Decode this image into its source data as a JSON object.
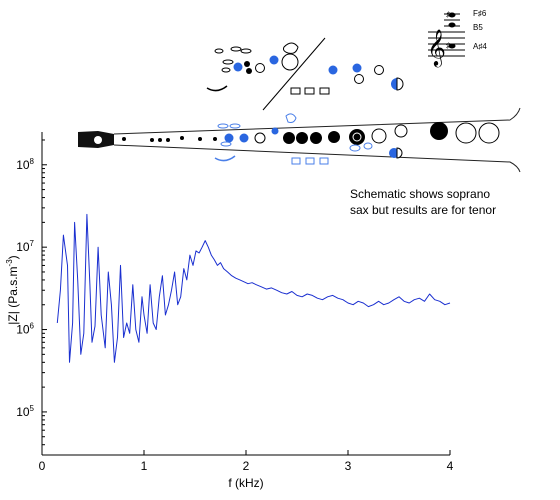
{
  "chart_data": {
    "type": "line",
    "xlabel": "f (kHz)",
    "ylabel": "|Z| (Pa.s.m",
    "ylabel_sup": "-3",
    "ylabel_close": ")",
    "x_ticks": [
      0,
      1,
      2,
      3,
      4
    ],
    "y_ticks": [
      {
        "value": 100000,
        "mantissa": "10",
        "exp": "5"
      },
      {
        "value": 1000000,
        "mantissa": "10",
        "exp": "6"
      },
      {
        "value": 10000000,
        "mantissa": "10",
        "exp": "7"
      },
      {
        "value": 100000000,
        "mantissa": "10",
        "exp": "8"
      }
    ],
    "xlim": [
      0,
      4
    ],
    "ylim": [
      30000,
      250000000
    ],
    "yscale": "log",
    "grid": false,
    "line_color": "#1a2fd0",
    "annotation": [
      "Schematic shows soprano",
      "sax but results are for tenor"
    ],
    "note_labels": [
      "F♯6",
      "B5",
      "A♯4"
    ],
    "series": [
      {
        "x": [
          0.15,
          0.18,
          0.21,
          0.25,
          0.27,
          0.3,
          0.32,
          0.35,
          0.38,
          0.41,
          0.44,
          0.47,
          0.49,
          0.52,
          0.55,
          0.58,
          0.62,
          0.65,
          0.68,
          0.71,
          0.74,
          0.77,
          0.8,
          0.83,
          0.86,
          0.89,
          0.92,
          0.95,
          0.98,
          1.0,
          1.03,
          1.06,
          1.09,
          1.12,
          1.15,
          1.18,
          1.21,
          1.24,
          1.27,
          1.3,
          1.33,
          1.36,
          1.39,
          1.42,
          1.45,
          1.48,
          1.51,
          1.54,
          1.57,
          1.6,
          1.63,
          1.66,
          1.69,
          1.72,
          1.75,
          1.78,
          1.82,
          1.86,
          1.9,
          1.94,
          1.98,
          2.02,
          2.06,
          2.1,
          2.15,
          2.2,
          2.25,
          2.3,
          2.35,
          2.4,
          2.45,
          2.5,
          2.55,
          2.6,
          2.65,
          2.7,
          2.75,
          2.8,
          2.85,
          2.9,
          2.95,
          3.0,
          3.05,
          3.1,
          3.15,
          3.2,
          3.25,
          3.3,
          3.35,
          3.4,
          3.45,
          3.5,
          3.55,
          3.6,
          3.65,
          3.7,
          3.75,
          3.8,
          3.85,
          3.9,
          3.95,
          4.0
        ],
        "y": [
          1200000,
          3000000,
          14000000,
          6000000,
          400000,
          1200000,
          20000000,
          4000000,
          500000,
          900000,
          25000000,
          3500000,
          700000,
          1100000,
          10000000,
          1500000,
          600000,
          5000000,
          2000000,
          400000,
          800000,
          6000000,
          800000,
          1200000,
          900000,
          3500000,
          1000000,
          700000,
          2500000,
          1500000,
          900000,
          3500000,
          1200000,
          1000000,
          2500000,
          4500000,
          1500000,
          2000000,
          3000000,
          5000000,
          2000000,
          2500000,
          5500000,
          4000000,
          8000000,
          6000000,
          9000000,
          8500000,
          10000000,
          12000000,
          10000000,
          8000000,
          7000000,
          6000000,
          6500000,
          5500000,
          5000000,
          4500000,
          4200000,
          4000000,
          3800000,
          3600000,
          3700000,
          3500000,
          3300000,
          3100000,
          3200000,
          3000000,
          2800000,
          2700000,
          2900000,
          2600000,
          2500000,
          2700000,
          2600000,
          2400000,
          2300000,
          2500000,
          2600000,
          2400000,
          2300000,
          2100000,
          2000000,
          2200000,
          2100000,
          1900000,
          2000000,
          2200000,
          2000000,
          2100000,
          2300000,
          2500000,
          2200000,
          2100000,
          2300000,
          2400000,
          2200000,
          2700000,
          2300000,
          2200000,
          2000000,
          2100000
        ]
      }
    ]
  }
}
